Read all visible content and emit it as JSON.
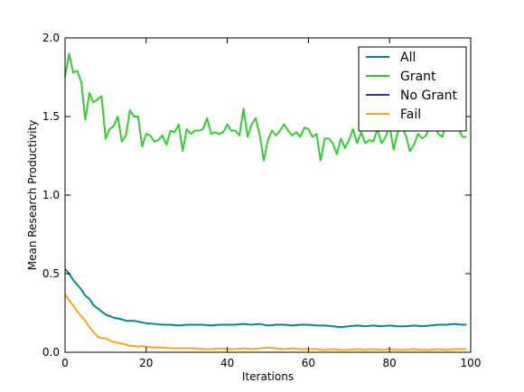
{
  "chart_data": {
    "type": "line",
    "title": "",
    "xlabel": "Iterations",
    "ylabel": "Mean Research Productivity",
    "xlim": [
      0,
      100
    ],
    "ylim": [
      0.0,
      2.0
    ],
    "grid": false,
    "legend_placement": "top-right",
    "x_ticks": [
      "0",
      "20",
      "40",
      "60",
      "80",
      "100"
    ],
    "y_ticks": [
      "0.0",
      "0.5",
      "1.0",
      "1.5",
      "2.0"
    ],
    "series": [
      {
        "name": "All",
        "color": "#008b8b",
        "x": [
          0,
          1,
          2,
          3,
          4,
          5,
          6,
          7,
          8,
          9,
          10,
          11,
          12,
          13,
          14,
          15,
          16,
          17,
          18,
          19,
          20,
          22,
          24,
          26,
          28,
          30,
          32,
          34,
          36,
          38,
          40,
          42,
          44,
          46,
          48,
          50,
          52,
          54,
          56,
          58,
          60,
          62,
          64,
          66,
          68,
          70,
          72,
          74,
          76,
          78,
          80,
          82,
          84,
          86,
          88,
          90,
          92,
          94,
          96,
          98,
          99
        ],
        "y": [
          0.53,
          0.5,
          0.46,
          0.43,
          0.4,
          0.36,
          0.34,
          0.3,
          0.28,
          0.26,
          0.24,
          0.23,
          0.22,
          0.215,
          0.21,
          0.2,
          0.2,
          0.2,
          0.195,
          0.19,
          0.185,
          0.18,
          0.175,
          0.175,
          0.17,
          0.175,
          0.175,
          0.175,
          0.17,
          0.175,
          0.175,
          0.175,
          0.18,
          0.175,
          0.18,
          0.17,
          0.175,
          0.175,
          0.17,
          0.175,
          0.175,
          0.17,
          0.17,
          0.165,
          0.16,
          0.165,
          0.17,
          0.165,
          0.17,
          0.165,
          0.17,
          0.165,
          0.165,
          0.17,
          0.165,
          0.17,
          0.175,
          0.175,
          0.18,
          0.175,
          0.175
        ]
      },
      {
        "name": "Grant",
        "color": "#33cc33",
        "x": [
          0,
          1,
          2,
          3,
          4,
          5,
          6,
          7,
          8,
          9,
          10,
          11,
          12,
          13,
          14,
          15,
          16,
          17,
          18,
          19,
          20,
          21,
          22,
          23,
          24,
          25,
          26,
          27,
          28,
          29,
          30,
          31,
          32,
          33,
          34,
          35,
          36,
          37,
          38,
          39,
          40,
          41,
          42,
          43,
          44,
          45,
          46,
          47,
          48,
          49,
          50,
          51,
          52,
          53,
          54,
          55,
          56,
          57,
          58,
          59,
          60,
          61,
          62,
          63,
          64,
          65,
          66,
          67,
          68,
          69,
          70,
          71,
          72,
          73,
          74,
          75,
          76,
          77,
          78,
          79,
          80,
          81,
          82,
          83,
          84,
          85,
          86,
          87,
          88,
          89,
          90,
          91,
          92,
          93,
          94,
          95,
          96,
          97,
          98,
          99
        ],
        "y": [
          1.75,
          1.9,
          1.78,
          1.79,
          1.72,
          1.48,
          1.65,
          1.59,
          1.61,
          1.63,
          1.36,
          1.42,
          1.44,
          1.5,
          1.34,
          1.38,
          1.54,
          1.5,
          1.5,
          1.31,
          1.39,
          1.38,
          1.34,
          1.35,
          1.38,
          1.32,
          1.41,
          1.4,
          1.45,
          1.28,
          1.42,
          1.39,
          1.41,
          1.41,
          1.42,
          1.49,
          1.39,
          1.4,
          1.39,
          1.4,
          1.45,
          1.41,
          1.41,
          1.38,
          1.55,
          1.37,
          1.45,
          1.49,
          1.38,
          1.22,
          1.35,
          1.41,
          1.38,
          1.41,
          1.45,
          1.41,
          1.38,
          1.4,
          1.37,
          1.43,
          1.42,
          1.37,
          1.39,
          1.22,
          1.36,
          1.36,
          1.33,
          1.26,
          1.36,
          1.3,
          1.35,
          1.42,
          1.33,
          1.4,
          1.33,
          1.35,
          1.34,
          1.42,
          1.33,
          1.37,
          1.44,
          1.29,
          1.4,
          1.43,
          1.38,
          1.28,
          1.32,
          1.39,
          1.36,
          1.38,
          1.45,
          1.46,
          1.39,
          1.37,
          1.47,
          1.45,
          1.48,
          1.42,
          1.37,
          1.37
        ]
      },
      {
        "name": "No Grant",
        "color": "#4b2a8c",
        "x": [],
        "y": []
      },
      {
        "name": "Fail",
        "color": "#f5a623",
        "x": [
          0,
          1,
          2,
          3,
          4,
          5,
          6,
          7,
          8,
          9,
          10,
          11,
          12,
          13,
          14,
          15,
          16,
          17,
          18,
          19,
          20,
          22,
          24,
          26,
          28,
          30,
          32,
          34,
          36,
          38,
          40,
          42,
          44,
          46,
          48,
          50,
          52,
          54,
          56,
          58,
          60,
          62,
          64,
          66,
          68,
          70,
          72,
          74,
          76,
          78,
          80,
          82,
          84,
          86,
          88,
          90,
          92,
          94,
          96,
          98,
          99
        ],
        "y": [
          0.37,
          0.33,
          0.3,
          0.26,
          0.23,
          0.2,
          0.16,
          0.13,
          0.1,
          0.09,
          0.09,
          0.075,
          0.065,
          0.06,
          0.055,
          0.05,
          0.04,
          0.04,
          0.035,
          0.04,
          0.035,
          0.03,
          0.03,
          0.025,
          0.025,
          0.025,
          0.025,
          0.02,
          0.02,
          0.025,
          0.02,
          0.02,
          0.025,
          0.02,
          0.025,
          0.03,
          0.025,
          0.02,
          0.025,
          0.02,
          0.02,
          0.02,
          0.015,
          0.02,
          0.015,
          0.015,
          0.02,
          0.015,
          0.02,
          0.015,
          0.02,
          0.015,
          0.015,
          0.02,
          0.015,
          0.015,
          0.02,
          0.015,
          0.02,
          0.02,
          0.02
        ]
      }
    ]
  }
}
